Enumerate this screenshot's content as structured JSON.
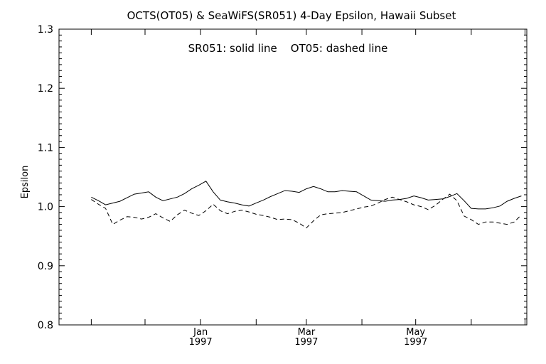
{
  "chart_data": {
    "type": "line",
    "title": "OCTS(OT05) & SeaWiFS(SR051) 4-Day Epsilon, Hawaii Subset",
    "annotation": "SR051: solid line    OT05: dashed line",
    "xlabel": "",
    "ylabel": "Epsilon",
    "ylim": [
      0.8,
      1.3
    ],
    "yticks": [
      "0.8",
      "0.9",
      "1.0",
      "1.1",
      "1.2",
      "1.3"
    ],
    "xticks": [
      {
        "month": "Jan",
        "year": "1997"
      },
      {
        "month": "Mar",
        "year": "1997"
      },
      {
        "month": "May",
        "year": "1997"
      }
    ],
    "grid": false,
    "series": [
      {
        "name": "SR051",
        "style": "solid",
        "color": "#000000",
        "x": [
          "1996-11-01",
          "1996-11-05",
          "1996-11-09",
          "1996-11-13",
          "1996-11-17",
          "1996-11-21",
          "1996-11-25",
          "1996-11-29",
          "1996-12-03",
          "1996-12-07",
          "1996-12-11",
          "1996-12-15",
          "1996-12-19",
          "1996-12-23",
          "1996-12-27",
          "1996-12-31",
          "1997-01-04",
          "1997-01-08",
          "1997-01-12",
          "1997-01-16",
          "1997-01-20",
          "1997-01-24",
          "1997-01-28",
          "1997-02-01",
          "1997-02-05",
          "1997-02-09",
          "1997-02-13",
          "1997-02-17",
          "1997-02-21",
          "1997-02-25",
          "1997-03-01",
          "1997-03-05",
          "1997-03-09",
          "1997-03-13",
          "1997-03-17",
          "1997-03-21",
          "1997-03-25",
          "1997-03-29",
          "1997-04-02",
          "1997-04-06",
          "1997-04-10",
          "1997-04-14",
          "1997-04-18",
          "1997-04-22",
          "1997-04-26",
          "1997-04-30",
          "1997-05-04",
          "1997-05-08",
          "1997-05-12",
          "1997-05-16",
          "1997-05-20",
          "1997-05-24",
          "1997-05-28",
          "1997-06-01",
          "1997-06-05",
          "1997-06-09",
          "1997-06-13",
          "1997-06-17",
          "1997-06-21",
          "1997-06-25",
          "1997-06-29"
        ],
        "y": [
          1.016,
          1.01,
          1.003,
          1.006,
          1.009,
          1.015,
          1.021,
          1.023,
          1.025,
          1.016,
          1.01,
          1.013,
          1.016,
          1.022,
          1.03,
          1.036,
          1.043,
          1.025,
          1.011,
          1.008,
          1.006,
          1.003,
          1.001,
          1.006,
          1.011,
          1.017,
          1.022,
          1.027,
          1.026,
          1.024,
          1.03,
          1.034,
          1.03,
          1.025,
          1.025,
          1.027,
          1.026,
          1.025,
          1.018,
          1.011,
          1.01,
          1.009,
          1.011,
          1.012,
          1.014,
          1.018,
          1.015,
          1.011,
          1.012,
          1.013,
          1.017,
          1.022,
          1.01,
          0.997,
          0.996,
          0.996,
          0.998,
          1.001,
          1.009,
          1.014,
          1.018
        ]
      },
      {
        "name": "OT05",
        "style": "dashed",
        "color": "#000000",
        "x": [
          "1996-11-01",
          "1996-11-05",
          "1996-11-09",
          "1996-11-13",
          "1996-11-17",
          "1996-11-21",
          "1996-11-25",
          "1996-11-29",
          "1996-12-03",
          "1996-12-07",
          "1996-12-11",
          "1996-12-15",
          "1996-12-19",
          "1996-12-23",
          "1996-12-27",
          "1996-12-31",
          "1997-01-04",
          "1997-01-08",
          "1997-01-12",
          "1997-01-16",
          "1997-01-20",
          "1997-01-24",
          "1997-01-28",
          "1997-02-01",
          "1997-02-05",
          "1997-02-09",
          "1997-02-13",
          "1997-02-17",
          "1997-02-21",
          "1997-02-25",
          "1997-03-01",
          "1997-03-05",
          "1997-03-09",
          "1997-03-13",
          "1997-03-17",
          "1997-03-21",
          "1997-03-25",
          "1997-03-29",
          "1997-04-02",
          "1997-04-06",
          "1997-04-10",
          "1997-04-14",
          "1997-04-18",
          "1997-04-22",
          "1997-04-26",
          "1997-04-30",
          "1997-05-04",
          "1997-05-08",
          "1997-05-12",
          "1997-05-16",
          "1997-05-20",
          "1997-05-24",
          "1997-05-28",
          "1997-06-01",
          "1997-06-05",
          "1997-06-09",
          "1997-06-13",
          "1997-06-17",
          "1997-06-21",
          "1997-06-25",
          "1997-06-29"
        ],
        "y": [
          1.012,
          1.004,
          0.997,
          0.97,
          0.977,
          0.983,
          0.982,
          0.979,
          0.982,
          0.988,
          0.981,
          0.975,
          0.986,
          0.994,
          0.989,
          0.985,
          0.993,
          1.004,
          0.993,
          0.988,
          0.992,
          0.994,
          0.991,
          0.987,
          0.985,
          0.982,
          0.978,
          0.979,
          0.978,
          0.972,
          0.964,
          0.976,
          0.986,
          0.988,
          0.989,
          0.99,
          0.993,
          0.996,
          0.999,
          1.001,
          1.006,
          1.012,
          1.016,
          1.012,
          1.008,
          1.003,
          1.0,
          0.995,
          1.002,
          1.012,
          1.021,
          1.01,
          0.984,
          0.978,
          0.97,
          0.974,
          0.974,
          0.972,
          0.97,
          0.974,
          0.986
        ]
      }
    ]
  }
}
